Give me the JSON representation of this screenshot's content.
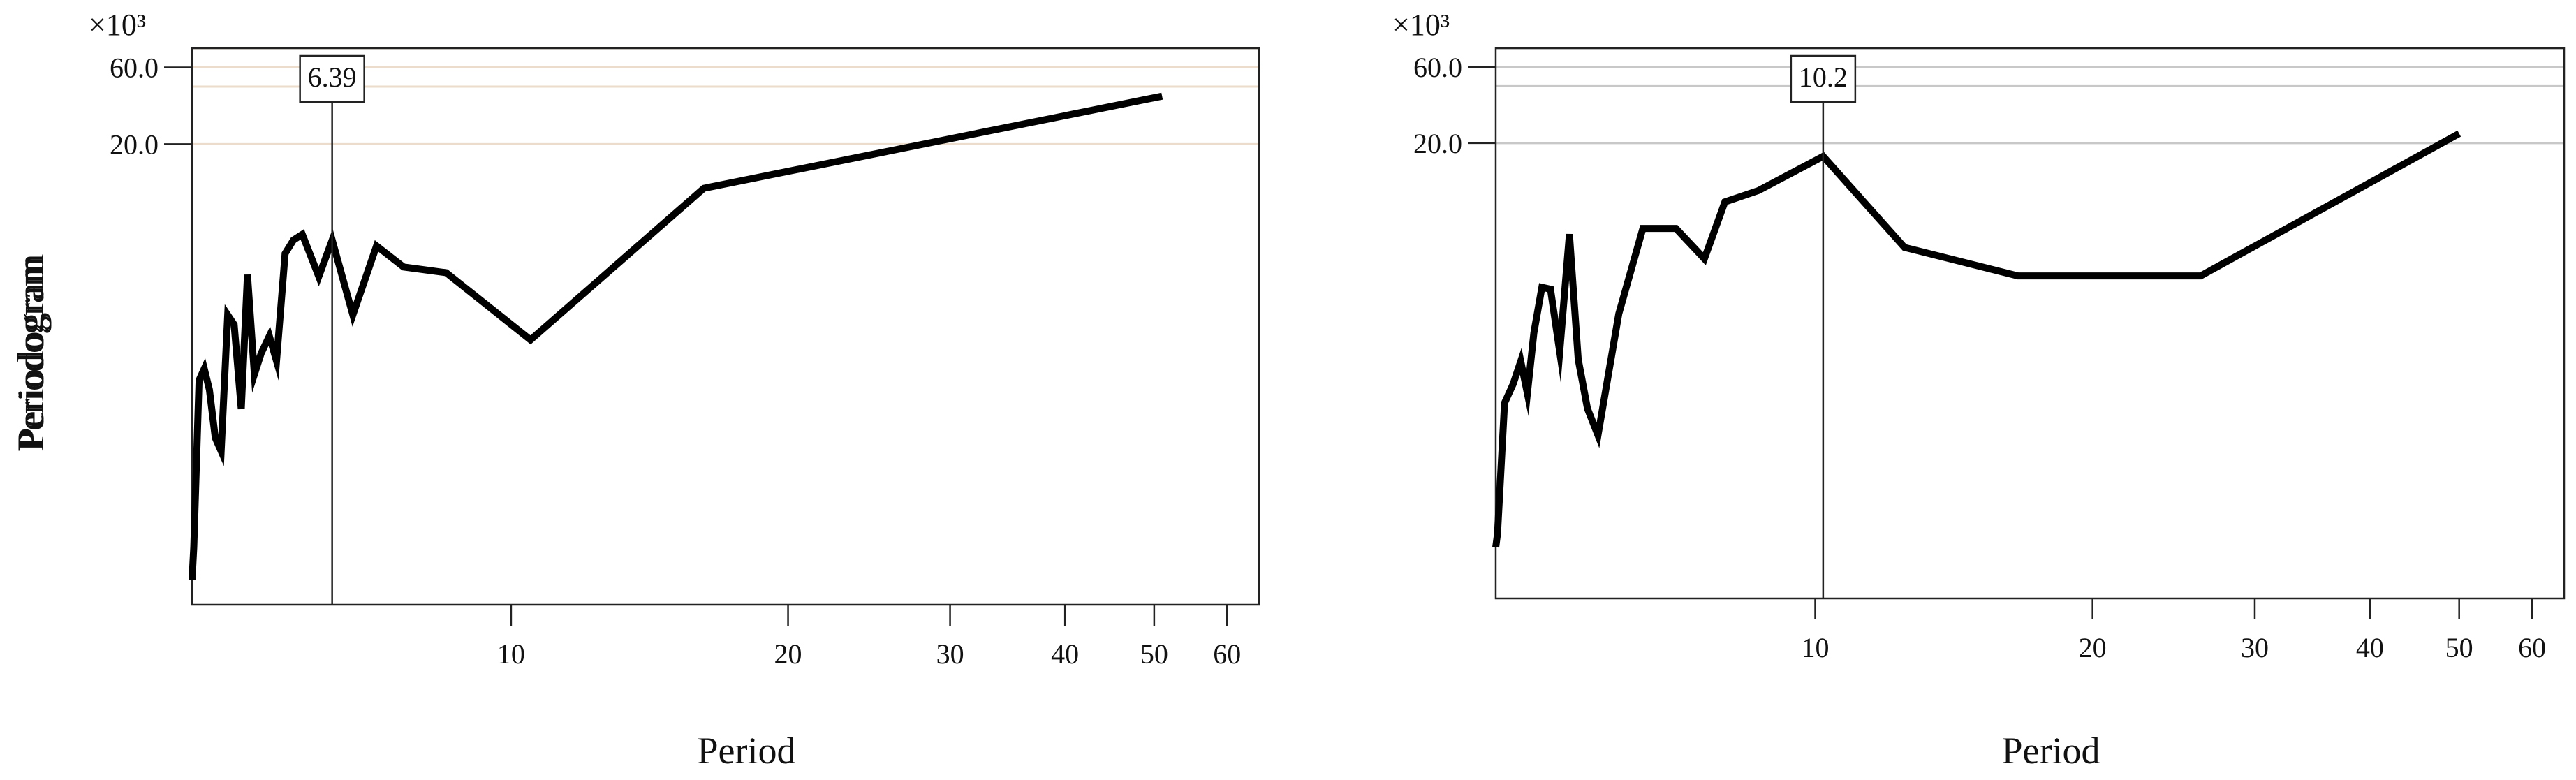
{
  "chart_data": [
    {
      "type": "line",
      "title": "",
      "xlabel": "Period",
      "ylabel": "Periodogram",
      "y_multiplier": "×10³",
      "x_scale": "log",
      "xlim": [
        4.5,
        65
      ],
      "x_ticks": [
        10,
        20,
        30,
        40,
        50,
        60
      ],
      "y_ticks": [
        {
          "value": 60,
          "label": "60.0"
        },
        {
          "value": 20,
          "label": "20.0"
        }
      ],
      "ylim": [
        -220,
        70
      ],
      "grid_lines": [
        70,
        60,
        50,
        20
      ],
      "grid": "horizontal",
      "grid_color": "#ebdccb",
      "marker": {
        "x": 6.39,
        "label": "6.39"
      },
      "series": [
        {
          "color": "#000000",
          "x": [
            4.5,
            4.52,
            4.58,
            4.64,
            4.7,
            4.77,
            4.84,
            4.92,
            5.0,
            5.09,
            5.17,
            5.26,
            5.35,
            5.46,
            5.56,
            5.68,
            5.8,
            5.93,
            6.18,
            6.39,
            6.73,
            7.14,
            7.64,
            8.5,
            10.5,
            16.2,
            51.0
          ],
          "y": [
            -207,
            -190,
            -103,
            -97,
            -108,
            -133,
            -140,
            -69,
            -74,
            -118,
            -48,
            -100,
            -89,
            -80,
            -93,
            -37,
            -30,
            -27,
            -49,
            -30,
            -69,
            -33,
            -44,
            -47,
            -82,
            -3,
            45
          ]
        }
      ]
    },
    {
      "type": "line",
      "title": "",
      "xlabel": "Period",
      "ylabel": "Periodogram",
      "y_multiplier": "×10³",
      "x_scale": "log",
      "xlim": [
        4.5,
        65
      ],
      "x_ticks": [
        10,
        20,
        30,
        40,
        50,
        60
      ],
      "y_ticks": [
        {
          "value": 60,
          "label": "60.0"
        },
        {
          "value": 20,
          "label": "20.0"
        }
      ],
      "ylim": [
        -220,
        70
      ],
      "grid_lines": [
        70,
        60,
        50,
        20
      ],
      "grid": "horizontal",
      "grid_color": "#c8c8c8",
      "marker": {
        "x": 10.2,
        "label": "10.2"
      },
      "series": [
        {
          "color": "#000000",
          "x": [
            4.5,
            4.52,
            4.6,
            4.7,
            4.79,
            4.87,
            4.95,
            5.05,
            5.16,
            5.28,
            5.41,
            5.53,
            5.66,
            5.81,
            6.12,
            6.5,
            7.06,
            7.58,
            7.98,
            8.68,
            10.2,
            12.5,
            16.6,
            26.2,
            50.0
          ],
          "y": [
            -193,
            -186,
            -117,
            -107,
            -95,
            -112,
            -80,
            -56,
            -57,
            -90,
            -28,
            -94,
            -120,
            -134,
            -70,
            -25,
            -25,
            -41,
            -11,
            -5,
            13,
            -35,
            -50,
            -50,
            25
          ]
        }
      ]
    }
  ]
}
